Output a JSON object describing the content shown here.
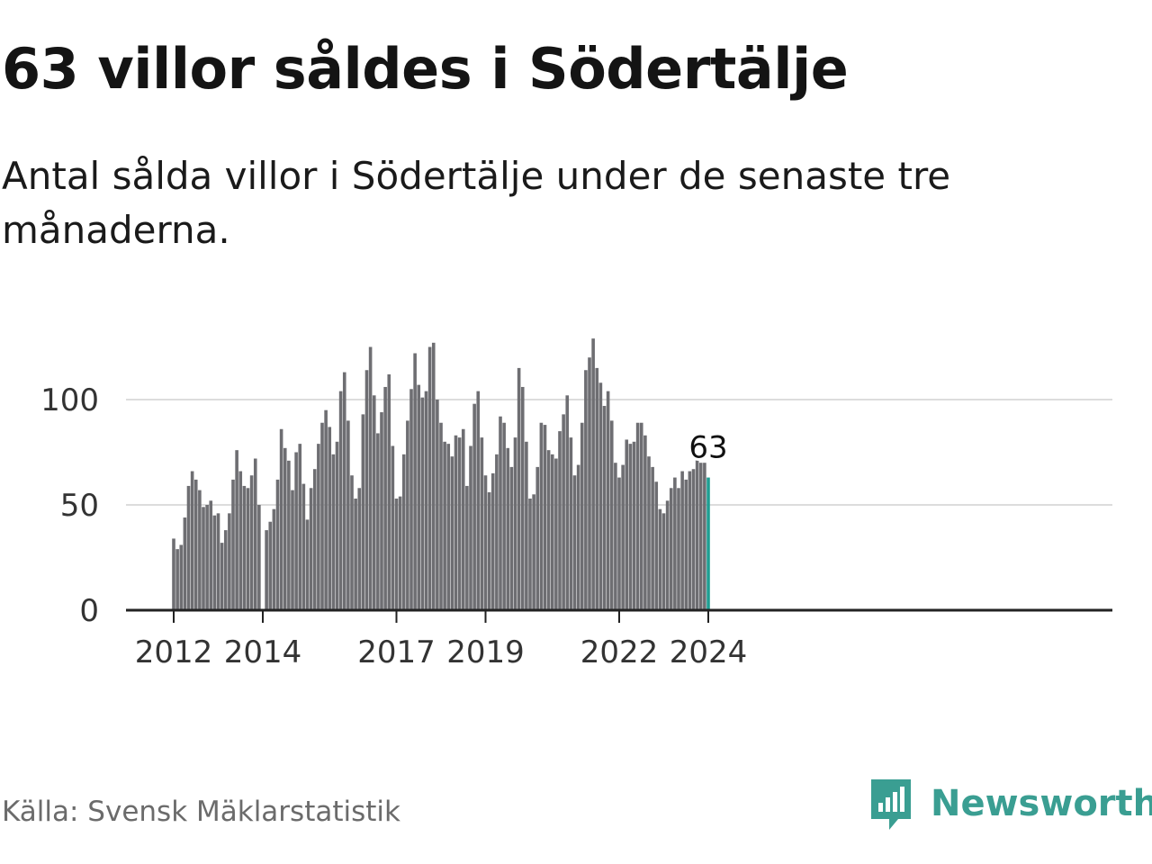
{
  "header": {
    "title": "63 villor såldes i Södertälje",
    "subtitle": "Antal sålda villor i Södertälje under de senaste tre månaderna."
  },
  "footer": {
    "source": "Källa: Svensk Mäklarstatistik",
    "brand": "Newsworthy",
    "brand_color": "#3a9e92"
  },
  "chart_data": {
    "type": "bar",
    "title": "63 villor såldes i Södertälje",
    "xlabel": "",
    "ylabel": "",
    "ylim": [
      0,
      130
    ],
    "yticks": [
      0,
      50,
      100
    ],
    "grid": true,
    "bar_color": "#6e6e72",
    "highlight_color": "#1f9e92",
    "start": "2012-01",
    "categories_note": "monthly rolling three-month totals",
    "xtick_labels": [
      {
        "label": "2012",
        "index": 0
      },
      {
        "label": "2014",
        "index": 24
      },
      {
        "label": "2017",
        "index": 60
      },
      {
        "label": "2019",
        "index": 84
      },
      {
        "label": "2022",
        "index": 120
      },
      {
        "label": "2024",
        "index": 144
      }
    ],
    "values": [
      34,
      29,
      31,
      44,
      59,
      66,
      62,
      57,
      49,
      50,
      52,
      45,
      46,
      32,
      38,
      46,
      62,
      76,
      66,
      59,
      58,
      64,
      72,
      50,
      0,
      38,
      42,
      48,
      62,
      86,
      77,
      71,
      57,
      75,
      79,
      60,
      43,
      58,
      67,
      79,
      89,
      95,
      87,
      74,
      80,
      104,
      113,
      90,
      64,
      53,
      58,
      93,
      114,
      125,
      102,
      84,
      94,
      106,
      112,
      78,
      53,
      54,
      74,
      90,
      105,
      122,
      107,
      101,
      104,
      125,
      127,
      100,
      89,
      80,
      79,
      73,
      83,
      82,
      86,
      59,
      78,
      98,
      104,
      82,
      64,
      56,
      65,
      74,
      92,
      89,
      77,
      68,
      82,
      115,
      106,
      80,
      53,
      55,
      68,
      89,
      88,
      76,
      74,
      72,
      85,
      93,
      102,
      82,
      64,
      69,
      89,
      114,
      120,
      129,
      115,
      108,
      97,
      104,
      90,
      70,
      63,
      69,
      81,
      79,
      80,
      89,
      89,
      83,
      73,
      68,
      61,
      48,
      46,
      52,
      58,
      63,
      58,
      66,
      62,
      66,
      67,
      72,
      70,
      70,
      63
    ],
    "highlight": {
      "index": 144,
      "value": 63,
      "label": "63"
    }
  }
}
